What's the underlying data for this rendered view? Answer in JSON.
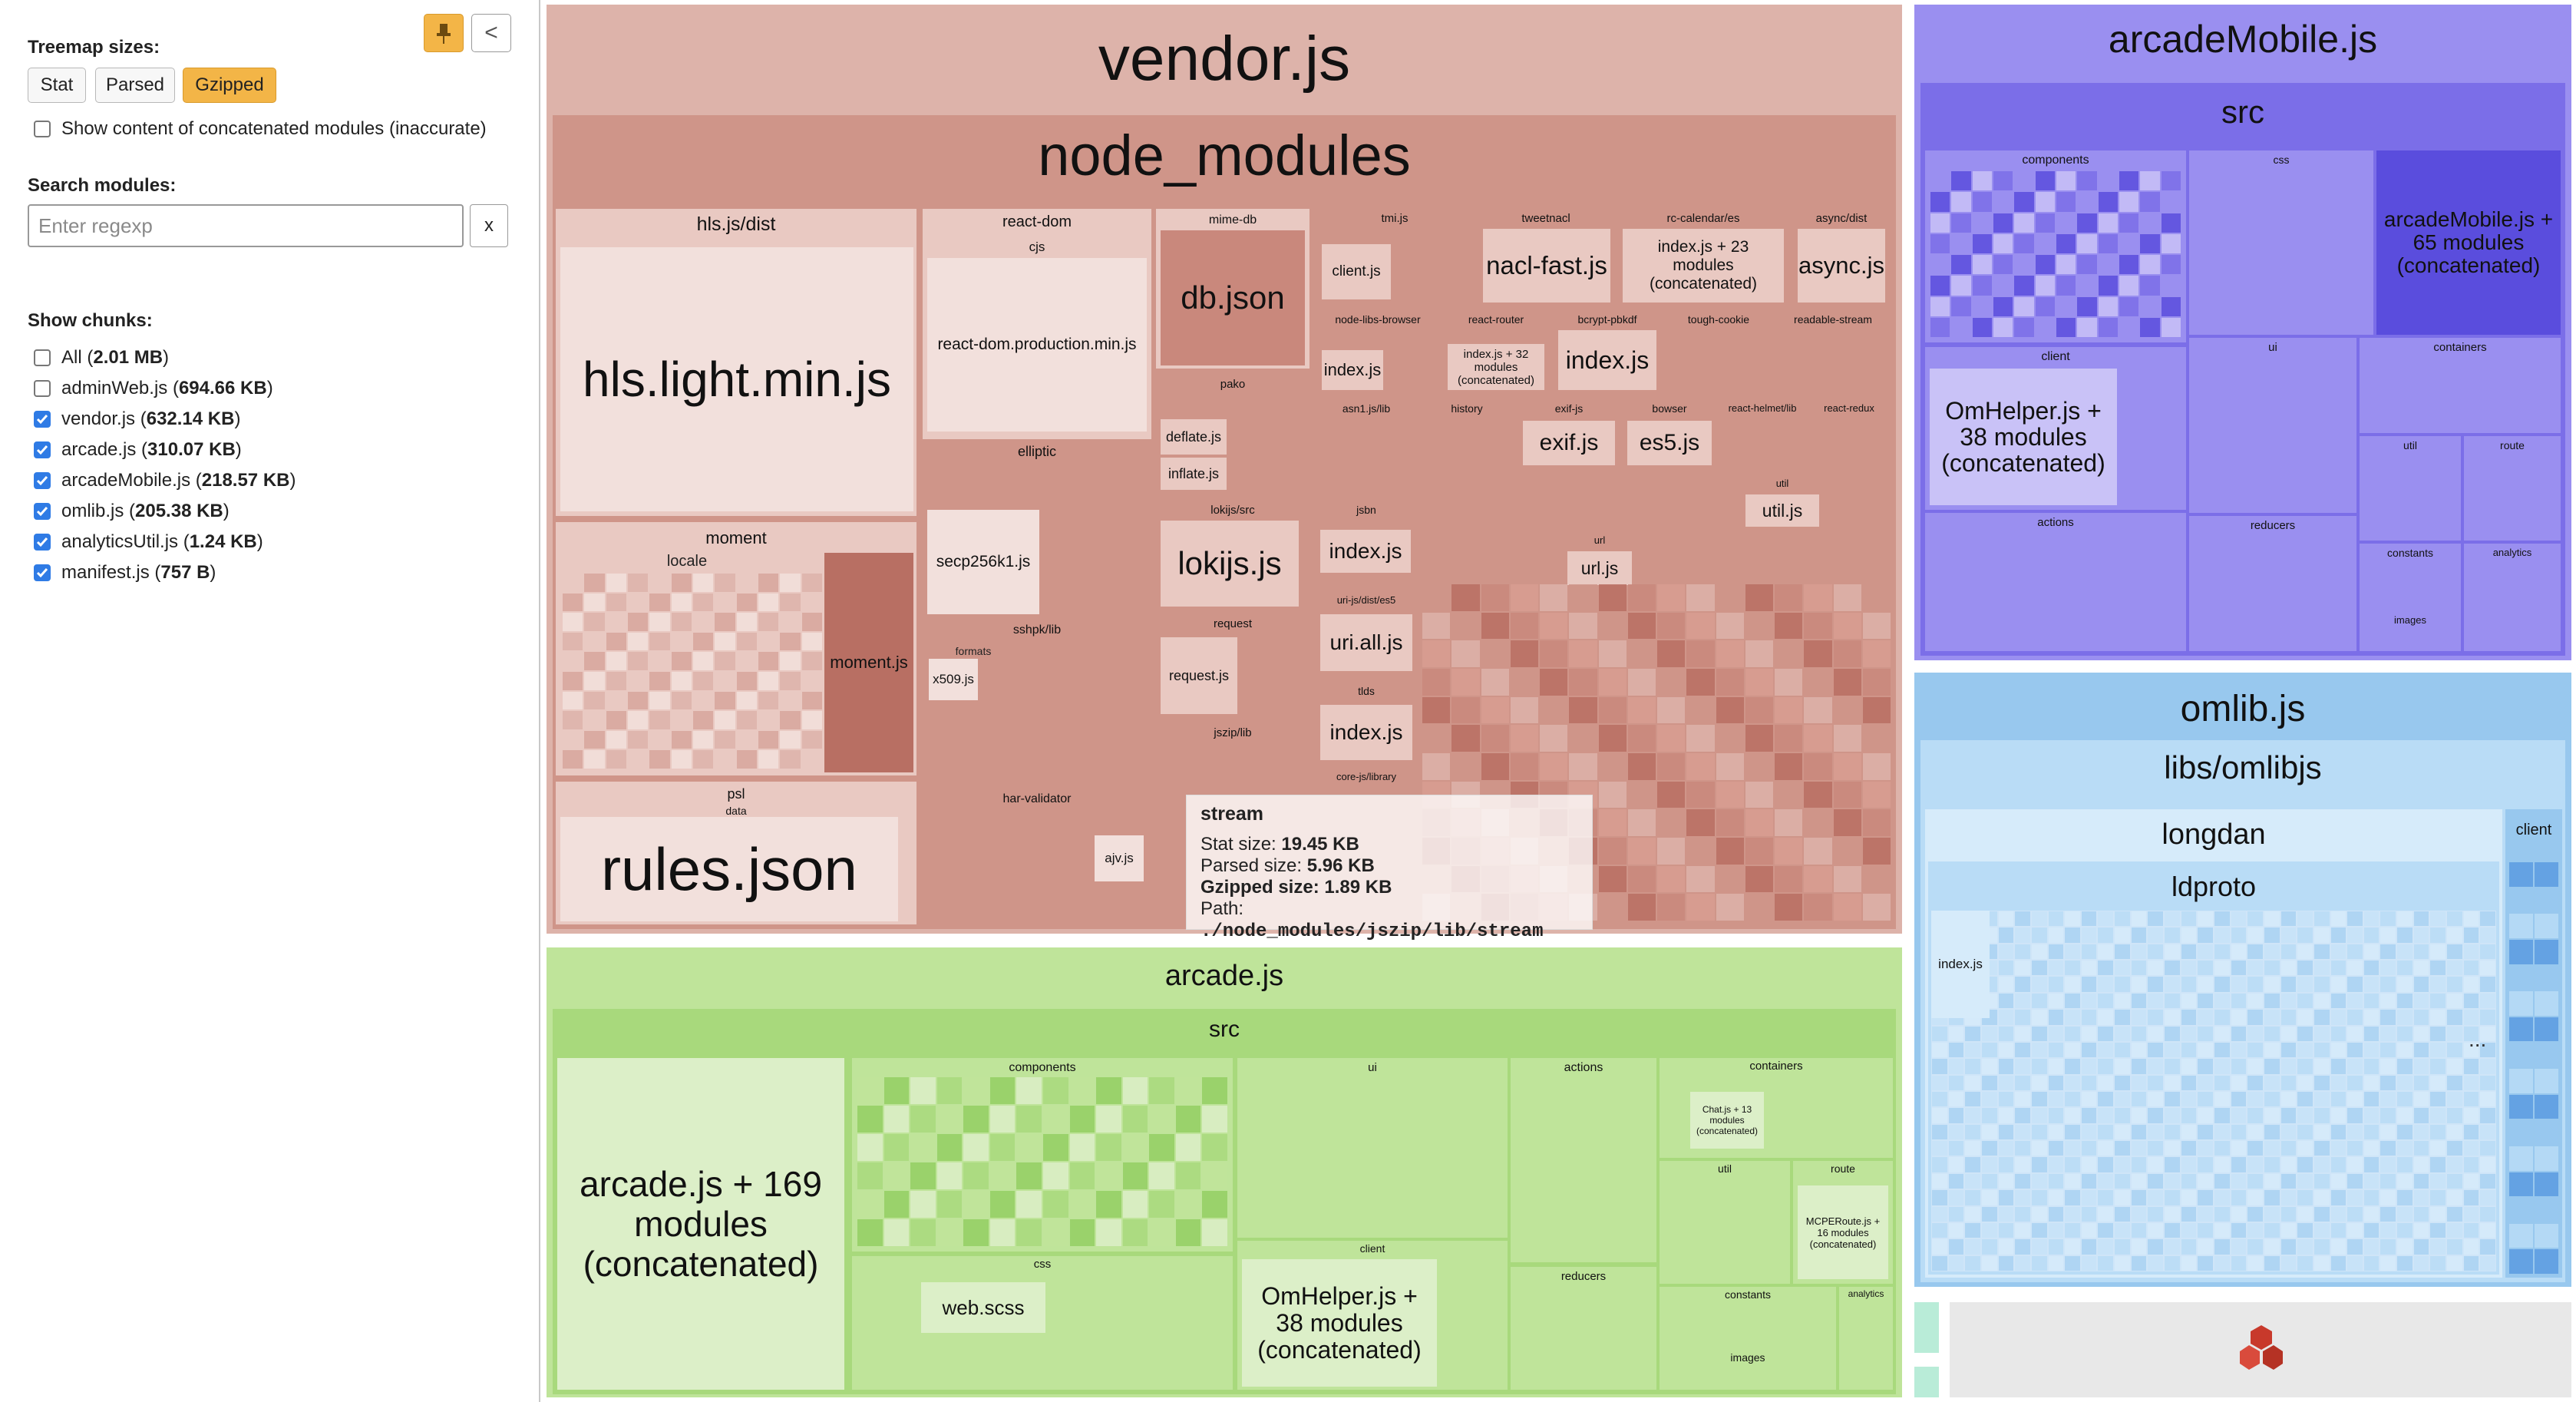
{
  "sidebar": {
    "treemap_sizes_title": "Treemap sizes:",
    "size_buttons": [
      "Stat",
      "Parsed",
      "Gzipped"
    ],
    "active_size": "Gzipped",
    "concatenated_label": "Show content of concatenated modules (inaccurate)",
    "search_title": "Search modules:",
    "search_placeholder": "Enter regexp",
    "clear_label": "x",
    "collapse_label": "<",
    "chunks_title": "Show chunks:",
    "chunks": [
      {
        "name": "All",
        "size": "2.01 MB",
        "checked": false
      },
      {
        "name": "adminWeb.js",
        "size": "694.66 KB",
        "checked": false
      },
      {
        "name": "vendor.js",
        "size": "632.14 KB",
        "checked": true
      },
      {
        "name": "arcade.js",
        "size": "310.07 KB",
        "checked": true
      },
      {
        "name": "arcadeMobile.js",
        "size": "218.57 KB",
        "checked": true
      },
      {
        "name": "omlib.js",
        "size": "205.38 KB",
        "checked": true
      },
      {
        "name": "analyticsUtil.js",
        "size": "1.24 KB",
        "checked": true
      },
      {
        "name": "manifest.js",
        "size": "757 B",
        "checked": true
      }
    ]
  },
  "treemap": {
    "vendor": {
      "title": "vendor.js",
      "node_modules": "node_modules",
      "hls_dist": "hls.js/dist",
      "hls_file": "hls.light.min.js",
      "moment": "moment",
      "locale": "locale",
      "moment_js": "moment.js",
      "psl": "psl",
      "psl_data": "data",
      "rules_json": "rules.json",
      "react_dom": "react-dom",
      "cjs": "cjs",
      "react_dom_prod": "react-dom.production.min.js",
      "elliptic": "elliptic",
      "secp": "secp256k1.js",
      "formats": "formats",
      "x509": "x509.js",
      "sshpk": "sshpk/lib",
      "har_validator": "har-validator",
      "ajv": "ajv.js",
      "mime_db": "mime-db",
      "db_json": "db.json",
      "pako": "pako",
      "deflate": "deflate.js",
      "inflate": "inflate.js",
      "lokijs_src": "lokijs/src",
      "lokijs": "lokijs.js",
      "request_dir": "request",
      "request_js": "request.js",
      "jszip": "jszip/lib",
      "tmi": "tmi.js",
      "client_js": "client.js",
      "tweetnacl": "tweetnacl",
      "nacl": "nacl-fast.js",
      "rc_calendar": "rc-calendar/es",
      "rc_index": "index.js + 23 modules (concatenated)",
      "async_dist": "async/dist",
      "async_js": "async.js",
      "node_libs_browser": "node-libs-browser",
      "index_js": "index.js",
      "react_router": "react-router",
      "rr_index": "index.js + 32 modules (concatenated)",
      "bcrypt": "bcrypt-pbkdf",
      "tough_cookie": "tough-cookie",
      "readable_stream": "readable-stream",
      "asn1": "asn1.js/lib",
      "history": "history",
      "exif_js_dir": "exif-js",
      "exif_js": "exif.js",
      "bowser": "bowser",
      "es5": "es5.js",
      "react_helmet": "react-helmet/lib",
      "react_redux": "react-redux",
      "jsbn": "jsbn",
      "url": "url",
      "url_js": "url.js",
      "util": "util",
      "util_js": "util.js",
      "uri_js_dist": "uri-js/dist/es5",
      "uri_all": "uri.all.js",
      "tlds": "tlds",
      "core_js": "core-js/library"
    },
    "tooltip": {
      "title": "stream",
      "stat_label": "Stat size:",
      "stat_value": "19.45 KB",
      "parsed_label": "Parsed size:",
      "parsed_value": "5.96 KB",
      "gzip_label": "Gzipped size:",
      "gzip_value": "1.89 KB",
      "path_label": "Path:",
      "path_value": "./node_modules/jszip/lib/stream"
    },
    "arcade": {
      "title": "arcade.js",
      "src": "src",
      "main_concat": "arcade.js + 169 modules (concatenated)",
      "components": "components",
      "css": "css",
      "web_scss": "web.scss",
      "ui": "ui",
      "client": "client",
      "omhelper": "OmHelper.js + 38 modules (concatenated)",
      "actions": "actions",
      "reducers": "reducers",
      "containers": "containers",
      "constants": "constants",
      "images": "images",
      "analytics": "analytics",
      "route": "route",
      "mcpe": "MCPERoute.js + 16 modules (concatenated)",
      "chat": "Chat.js + 13 modules (concatenated)",
      "util": "util"
    },
    "arcadeMobile": {
      "title": "arcadeMobile.js",
      "src": "src",
      "components": "components",
      "css": "css",
      "main_concat": "arcadeMobile.js + 65 modules (concatenated)",
      "client": "client",
      "omhelper": "OmHelper.js + 38 modules (concatenated)",
      "ui": "ui",
      "containers": "containers",
      "actions": "actions",
      "reducers": "reducers",
      "util": "util",
      "route": "route",
      "constants": "constants",
      "analytics": "analytics",
      "images": "images"
    },
    "omlib": {
      "title": "omlib.js",
      "libs": "libs/omlibjs",
      "longdan": "longdan",
      "ldproto": "ldproto",
      "index_js": "index.js",
      "client": "client",
      "ellipsis": "..."
    }
  }
}
